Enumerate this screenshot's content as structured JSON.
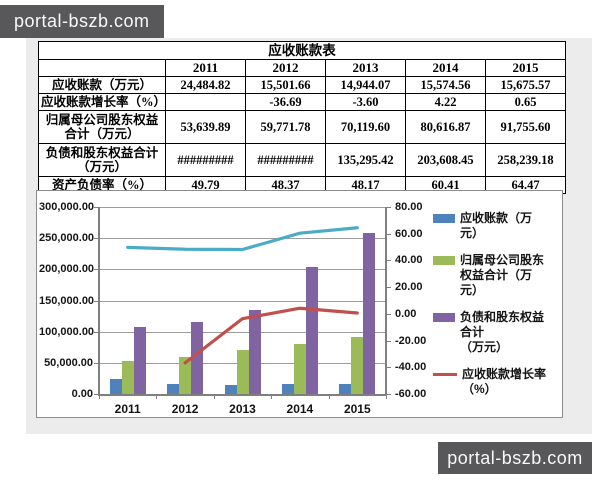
{
  "watermark": {
    "text": "portal-bszb.com"
  },
  "table": {
    "title": "应收账款表",
    "years": [
      "2011",
      "2012",
      "2013",
      "2014",
      "2015"
    ],
    "rows": [
      {
        "label": "应收账款（万元）",
        "values": [
          "24,484.82",
          "15,501.66",
          "14,944.07",
          "15,574.56",
          "15,675.57"
        ]
      },
      {
        "label": "应收账款增长率（%）",
        "values": [
          "",
          "-36.69",
          "-3.60",
          "4.22",
          "0.65"
        ]
      },
      {
        "label": "归属母公司股东权益合计（万元）",
        "values": [
          "53,639.89",
          "59,771.78",
          "70,119.60",
          "80,616.87",
          "91,755.60"
        ]
      },
      {
        "label": "负债和股东权益合计（万元）",
        "values": [
          "#########",
          "#########",
          "135,295.42",
          "203,608.45",
          "258,239.18"
        ]
      },
      {
        "label": "资产负债率（%）",
        "values": [
          "49.79",
          "48.37",
          "48.17",
          "60.41",
          "64.47"
        ]
      }
    ]
  },
  "chart_data": {
    "type": "bar",
    "subtype": "bar-line-combo",
    "categories": [
      "2011",
      "2012",
      "2013",
      "2014",
      "2015"
    ],
    "series": [
      {
        "name": "应收账款（万元）",
        "type": "bar",
        "axis": "left",
        "color": "#4f81bd",
        "values": [
          24484.82,
          15501.66,
          14944.07,
          15574.56,
          15675.57
        ]
      },
      {
        "name": "归属母公司股东权益合计（万元）",
        "type": "bar",
        "axis": "left",
        "color": "#9bbb59",
        "values": [
          53639.89,
          59771.78,
          70119.6,
          80616.87,
          91755.6
        ]
      },
      {
        "name": "负债和股东权益合计（万元）",
        "type": "bar",
        "axis": "left",
        "color": "#8064a2",
        "values": [
          106800,
          115800,
          135295.42,
          203608.45,
          258239.18
        ]
      },
      {
        "name": "应收账款增长率（%）",
        "type": "line",
        "axis": "right",
        "color": "#c0504d",
        "values": [
          null,
          -36.69,
          -3.6,
          4.22,
          0.65
        ]
      },
      {
        "name": "资产负债率（%）",
        "type": "line",
        "axis": "right",
        "color": "#4bacc6",
        "values": [
          49.79,
          48.37,
          48.17,
          60.41,
          64.47
        ]
      }
    ],
    "legend_labels": [
      "应收账款（万\n元）",
      "归属母公司股东\n权益合计（万\n元）",
      "负债和股东权益\n合计\n（万元）",
      "应收账款增长率\n（%）"
    ],
    "left_axis": {
      "min": 0,
      "max": 300000,
      "step": 50000,
      "labels": [
        "300,000.00",
        "250,000.00",
        "200,000.00",
        "150,000.00",
        "100,000.00",
        "50,000.00",
        "0.00"
      ]
    },
    "right_axis": {
      "min": -60,
      "max": 80,
      "step": 20,
      "labels": [
        "80.00",
        "60.00",
        "40.00",
        "20.00",
        "0.00",
        "-20.00",
        "-40.00",
        "-60.00"
      ]
    },
    "legend_position": "right",
    "grid": true,
    "title": "",
    "xlabel": "",
    "ylabel": ""
  }
}
